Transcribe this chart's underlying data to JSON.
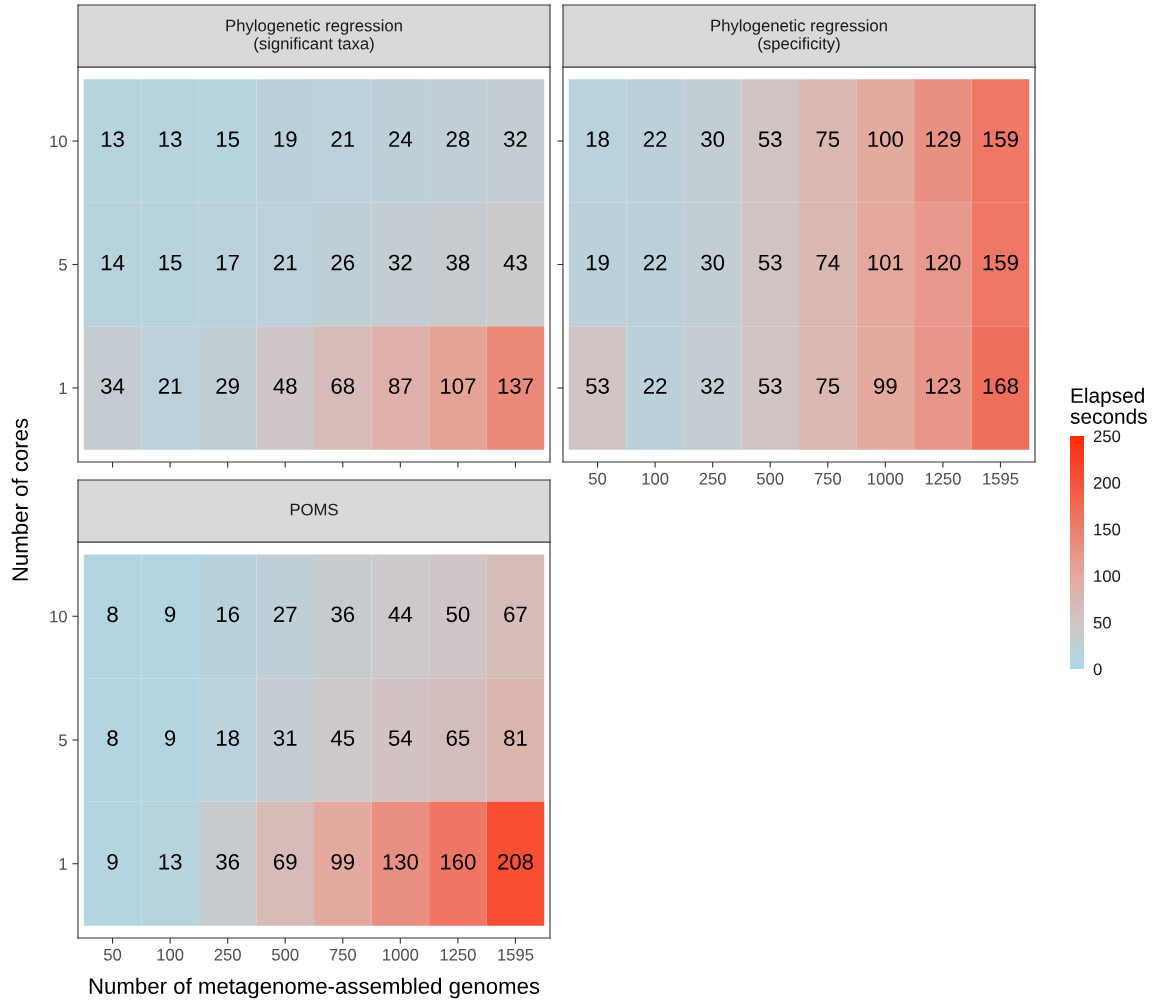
{
  "chart_data": [
    {
      "type": "heatmap",
      "title": "Phylogenetic regression\n(significant taxa)",
      "ylabel": "Number of cores",
      "categories": [
        "50",
        "100",
        "250",
        "500",
        "750",
        "1000",
        "1250",
        "1595"
      ],
      "y_categories": [
        "10",
        "5",
        "1"
      ],
      "tick_labels": "y",
      "data_labels": true,
      "cells": [
        [
          13,
          13,
          15,
          19,
          21,
          24,
          28,
          32
        ],
        [
          14,
          15,
          17,
          21,
          26,
          32,
          38,
          43
        ],
        [
          34,
          21,
          29,
          48,
          68,
          87,
          107,
          137
        ]
      ]
    },
    {
      "type": "heatmap",
      "title": "Phylogenetic regression\n(specificity)",
      "categories": [
        "50",
        "100",
        "250",
        "500",
        "750",
        "1000",
        "1250",
        "1595"
      ],
      "y_categories": [
        "10",
        "5",
        "1"
      ],
      "tick_labels": "x",
      "data_labels": true,
      "clim": [
        0,
        250
      ],
      "cticks": [
        0,
        50,
        100,
        150,
        200,
        250
      ],
      "clabel": "Elapsed\nseconds",
      "cells": [
        [
          18,
          22,
          30,
          53,
          75,
          100,
          129,
          159
        ],
        [
          19,
          22,
          30,
          53,
          74,
          101,
          120,
          159
        ],
        [
          53,
          22,
          32,
          53,
          75,
          99,
          123,
          168
        ]
      ]
    },
    {
      "type": "heatmap",
      "title": "POMS",
      "xlabel": "Number of metagenome-assembled genomes",
      "categories": [
        "50",
        "100",
        "250",
        "500",
        "750",
        "1000",
        "1250",
        "1595"
      ],
      "y_categories": [
        "10",
        "5",
        "1"
      ],
      "data_labels": true,
      "cells": [
        [
          8,
          9,
          16,
          27,
          36,
          44,
          50,
          67
        ],
        [
          8,
          9,
          18,
          31,
          45,
          54,
          65,
          81
        ],
        [
          9,
          13,
          36,
          69,
          99,
          130,
          160,
          208
        ]
      ]
    }
  ]
}
